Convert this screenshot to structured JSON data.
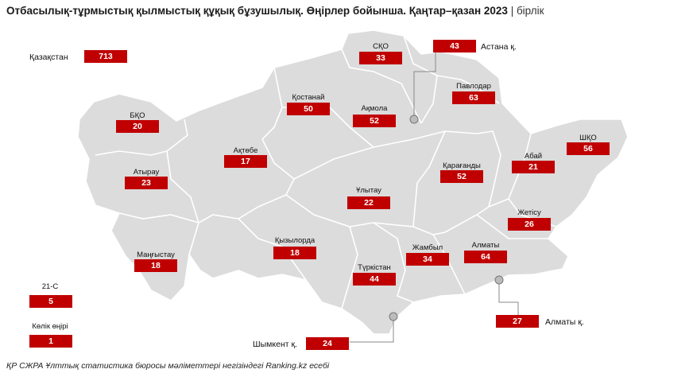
{
  "title": "Отбасылық-тұрмыстық қылмыстық құқық бұзушылық. Өңірлер бойынша. Қаңтар–қазан 2023",
  "unit": "бірлік",
  "source": "ҚР СЖРА Ұлттық статистика бюросы мәліметтері негізіндегі Ranking.kz есебі",
  "colors": {
    "accent": "#c00000",
    "land": "#dcdcdc",
    "border": "#ffffff"
  },
  "kazakhstan": {
    "label": "Қазақстан",
    "value": "713"
  },
  "regions": [
    {
      "key": "sko",
      "label": "СҚО",
      "value": "33"
    },
    {
      "key": "astana",
      "label": "Астана қ.",
      "value": "43"
    },
    {
      "key": "pavlodar",
      "label": "Павлодар",
      "value": "63"
    },
    {
      "key": "kostanay",
      "label": "Қостанай",
      "value": "50"
    },
    {
      "key": "akmola",
      "label": "Ақмола",
      "value": "52"
    },
    {
      "key": "bko",
      "label": "БҚО",
      "value": "20"
    },
    {
      "key": "aktobe",
      "label": "Ақтөбе",
      "value": "17"
    },
    {
      "key": "vko",
      "label": "ШҚО",
      "value": "56"
    },
    {
      "key": "abay",
      "label": "Абай",
      "value": "21"
    },
    {
      "key": "karaganda",
      "label": "Қарағанды",
      "value": "52"
    },
    {
      "key": "atyrau",
      "label": "Атырау",
      "value": "23"
    },
    {
      "key": "ulytau",
      "label": "Ұлытау",
      "value": "22"
    },
    {
      "key": "zhetisu",
      "label": "Жетісу",
      "value": "26"
    },
    {
      "key": "kyzylorda",
      "label": "Қызылорда",
      "value": "18"
    },
    {
      "key": "mangystau",
      "label": "Маңғыстау",
      "value": "18"
    },
    {
      "key": "zhambyl",
      "label": "Жамбыл",
      "value": "34"
    },
    {
      "key": "almaty_reg",
      "label": "Алматы",
      "value": "64"
    },
    {
      "key": "turkistan",
      "label": "Түркістан",
      "value": "44"
    },
    {
      "key": "almaty_city",
      "label": "Алматы қ.",
      "value": "27"
    },
    {
      "key": "shymkent",
      "label": "Шымкент қ.",
      "value": "24"
    }
  ],
  "other": [
    {
      "key": "c21",
      "label": "21-С",
      "value": "5"
    },
    {
      "key": "transport",
      "label": "Көлік өңірі",
      "value": "1"
    }
  ]
}
